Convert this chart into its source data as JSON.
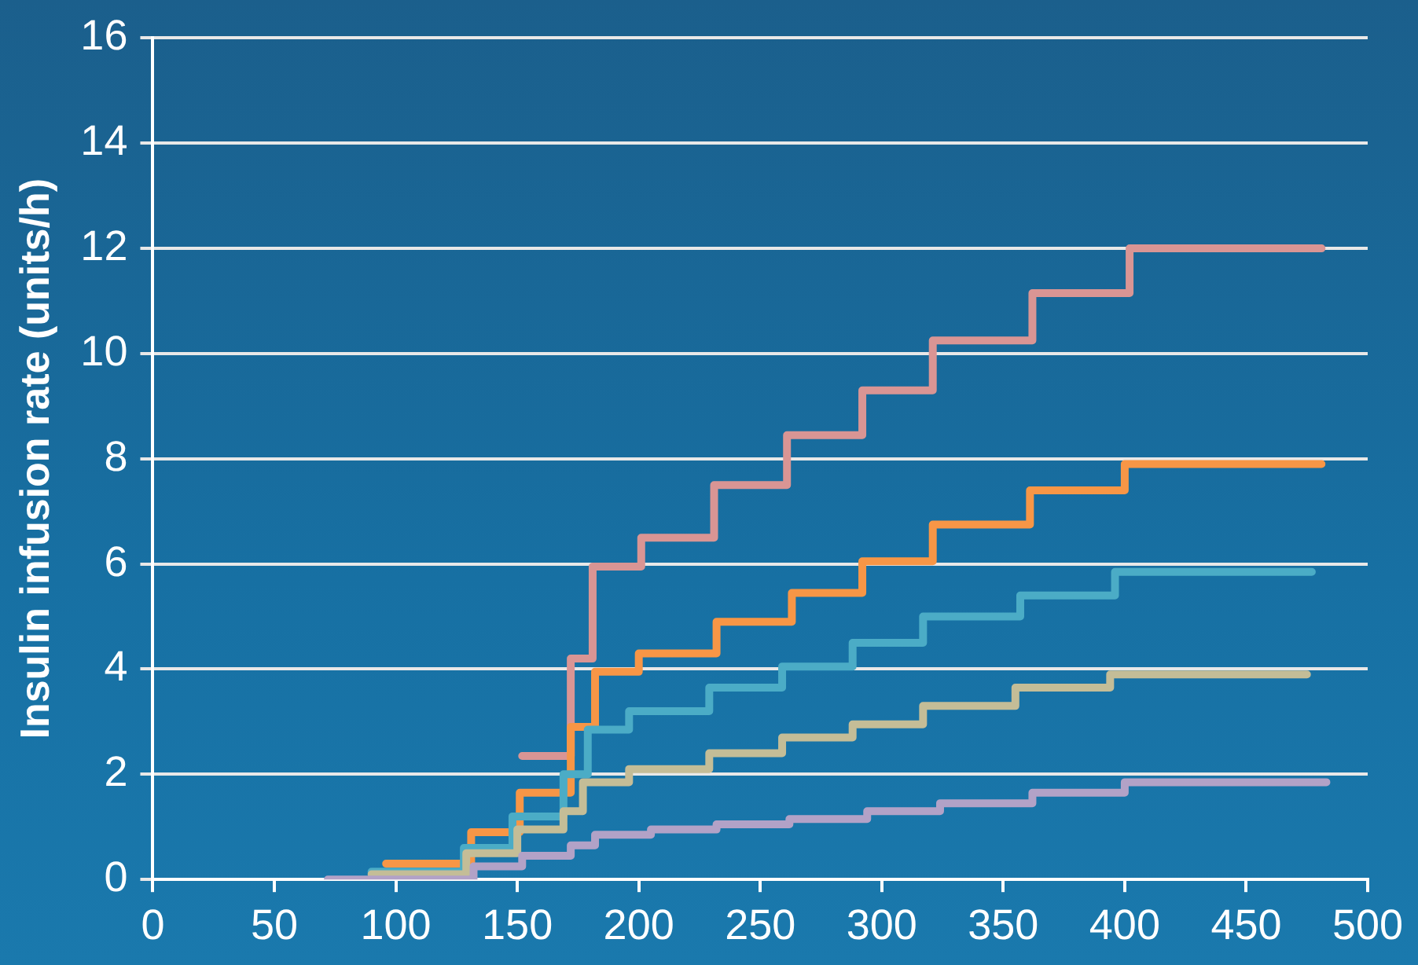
{
  "chart_data": {
    "type": "step",
    "ylabel": "Insulin infusion rate (units/h)",
    "xlim": [
      0,
      500
    ],
    "ylim": [
      0,
      16
    ],
    "xticks": [
      0,
      50,
      100,
      150,
      200,
      250,
      300,
      350,
      400,
      450,
      500
    ],
    "yticks": [
      0,
      2,
      4,
      6,
      8,
      10,
      12,
      14,
      16
    ],
    "grid": "y",
    "marker": "none",
    "line_style": "solid",
    "series": [
      {
        "color": "#b2a2c7",
        "x": [
          72,
          132,
          152,
          172,
          182,
          205,
          232,
          262,
          294,
          324,
          362,
          400,
          483
        ],
        "values": [
          0,
          0.25,
          0.45,
          0.65,
          0.85,
          0.95,
          1.05,
          1.15,
          1.3,
          1.45,
          1.65,
          1.85,
          1.85
        ]
      },
      {
        "color": "#c4bd97",
        "x": [
          90,
          129,
          150,
          169,
          177,
          196,
          229,
          259,
          288,
          317,
          355,
          394,
          475
        ],
        "values": [
          0.1,
          0.5,
          0.95,
          1.3,
          1.85,
          2.1,
          2.4,
          2.7,
          2.95,
          3.3,
          3.65,
          3.9,
          3.9
        ]
      },
      {
        "color": "#4bacc6",
        "x": [
          90,
          128,
          148,
          169,
          179,
          196,
          229,
          259,
          288,
          317,
          357,
          396,
          477
        ],
        "values": [
          0.15,
          0.6,
          1.2,
          2.0,
          2.85,
          3.2,
          3.65,
          4.05,
          4.5,
          5.0,
          5.4,
          5.85,
          5.85
        ]
      },
      {
        "color": "#f79646",
        "x": [
          96,
          131,
          151,
          172,
          182,
          200,
          232,
          263,
          292,
          321,
          361,
          400,
          481
        ],
        "values": [
          0.3,
          0.9,
          1.65,
          2.9,
          3.95,
          4.3,
          4.9,
          5.45,
          6.05,
          6.75,
          7.4,
          7.9,
          7.9
        ]
      },
      {
        "color": "#d99594",
        "x": [
          152,
          172,
          181,
          201,
          231,
          261,
          292,
          321,
          362,
          402,
          481
        ],
        "values": [
          2.35,
          4.2,
          5.95,
          6.5,
          7.5,
          8.45,
          9.3,
          10.25,
          11.15,
          12.0,
          12.0
        ]
      }
    ]
  }
}
